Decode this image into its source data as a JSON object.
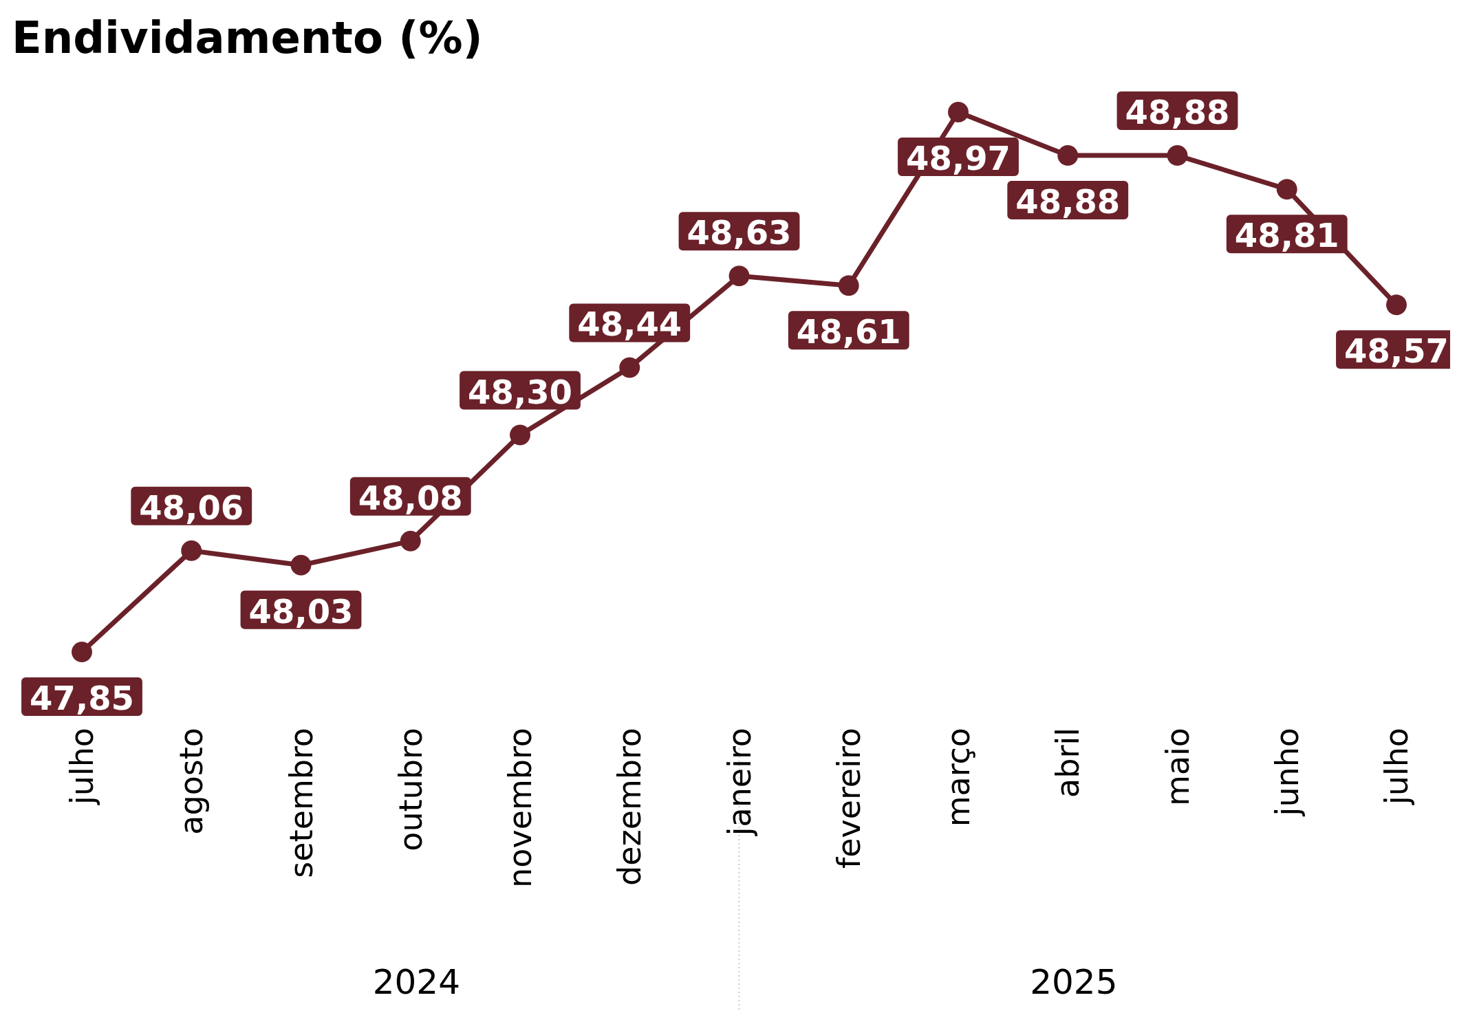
{
  "chart_data": {
    "type": "line",
    "title": "Endividamento (%)",
    "categories": [
      "julho",
      "agosto",
      "setembro",
      "outubro",
      "novembro",
      "dezembro",
      "janeiro",
      "fevereiro",
      "março",
      "abril",
      "maio",
      "junho",
      "julho"
    ],
    "values": [
      47.85,
      48.06,
      48.03,
      48.08,
      48.3,
      48.44,
      48.63,
      48.61,
      48.97,
      48.88,
      48.88,
      48.81,
      48.57
    ],
    "value_labels": [
      "47,85",
      "48,06",
      "48,03",
      "48,08",
      "48,30",
      "48,44",
      "48,63",
      "48,61",
      "48,97",
      "48,88",
      "48,88",
      "48,81",
      "48,57"
    ],
    "color": "#6b2129",
    "marker": "circle",
    "line_style": "solid",
    "grid": false,
    "annotations": [
      "2024",
      "2025"
    ]
  }
}
